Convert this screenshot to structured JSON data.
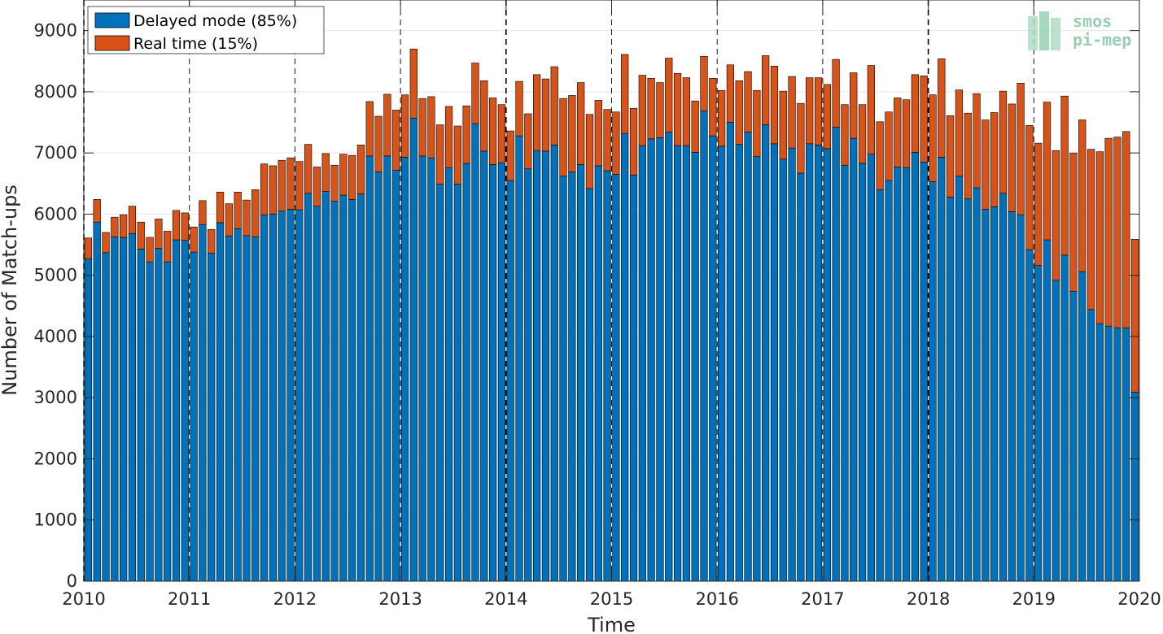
{
  "chart_data": {
    "type": "bar",
    "stacked": true,
    "xlabel": "Time",
    "ylabel": "Number of Match-ups",
    "xlim": [
      2010,
      2020
    ],
    "ylim": [
      0,
      9500
    ],
    "x_ticks": [
      2010,
      2011,
      2012,
      2013,
      2014,
      2015,
      2016,
      2017,
      2018,
      2019,
      2020
    ],
    "y_ticks": [
      0,
      1000,
      2000,
      3000,
      4000,
      5000,
      6000,
      7000,
      8000,
      9000
    ],
    "grid": true,
    "legend_position": "top-left",
    "colors": {
      "delayed": "#0072BD",
      "realtime": "#D95319"
    },
    "logo": {
      "line1": "smos",
      "line2": "pi-mep"
    },
    "series": [
      {
        "name": "Delayed mode (85%)",
        "values": [
          5270,
          5870,
          5370,
          5630,
          5620,
          5680,
          5430,
          5220,
          5440,
          5220,
          5580,
          5570,
          5380,
          5830,
          5360,
          5860,
          5640,
          5760,
          5650,
          5630,
          5990,
          6000,
          6050,
          6080,
          6070,
          6340,
          6130,
          6370,
          6210,
          6310,
          6240,
          6330,
          6950,
          6690,
          6950,
          6720,
          6930,
          7570,
          6950,
          6920,
          6490,
          6760,
          6490,
          6830,
          7480,
          7030,
          6810,
          6840,
          6550,
          7280,
          6740,
          7040,
          7030,
          7130,
          6620,
          6690,
          6810,
          6420,
          6790,
          6710,
          6650,
          7320,
          6640,
          7120,
          7230,
          7250,
          7340,
          7120,
          7120,
          7010,
          7690,
          7280,
          7110,
          7500,
          7140,
          7340,
          6940,
          7460,
          7150,
          6900,
          7080,
          6670,
          7150,
          7130,
          7070,
          7420,
          6800,
          7240,
          6830,
          6980,
          6400,
          6550,
          6770,
          6760,
          7010,
          6850,
          6530,
          6930,
          6280,
          6620,
          6250,
          6430,
          6080,
          6120,
          6340,
          6040,
          5990,
          5420,
          5160,
          5580,
          4920,
          5330,
          4740,
          5060,
          4440,
          4210,
          4170,
          4140,
          4140,
          3090
        ]
      },
      {
        "name": "Real time (15%)",
        "values": [
          340,
          370,
          330,
          320,
          370,
          450,
          440,
          400,
          480,
          500,
          480,
          450,
          410,
          390,
          390,
          500,
          530,
          600,
          580,
          770,
          830,
          790,
          830,
          840,
          790,
          800,
          640,
          620,
          590,
          670,
          720,
          800,
          890,
          910,
          1010,
          980,
          1020,
          1130,
          940,
          1000,
          970,
          1000,
          950,
          940,
          990,
          1150,
          1090,
          950,
          810,
          890,
          900,
          1240,
          1180,
          1280,
          1270,
          1250,
          1340,
          1210,
          1070,
          1000,
          1020,
          1290,
          1090,
          1150,
          990,
          900,
          1210,
          1180,
          1110,
          840,
          890,
          940,
          910,
          940,
          1040,
          990,
          1080,
          1130,
          1270,
          1110,
          1170,
          1140,
          1080,
          1100,
          1050,
          1110,
          990,
          1070,
          960,
          1450,
          1110,
          1120,
          1130,
          1110,
          1270,
          1410,
          1420,
          1610,
          1330,
          1410,
          1400,
          1540,
          1460,
          1540,
          1670,
          1760,
          2150,
          2030,
          2000,
          2250,
          2120,
          2600,
          2260,
          2480,
          2620,
          2810,
          3070,
          3120,
          3210,
          2500
        ]
      }
    ]
  }
}
